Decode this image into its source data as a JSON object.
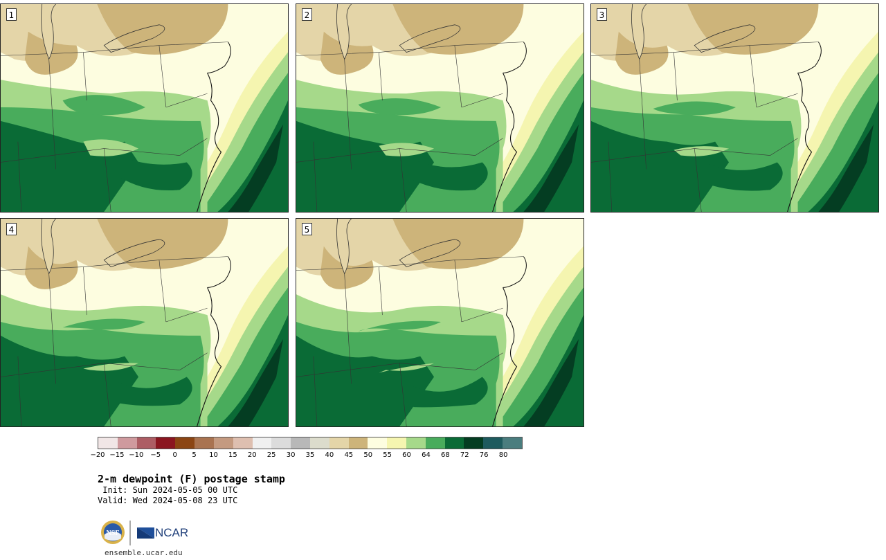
{
  "panels": [
    {
      "label": "1"
    },
    {
      "label": "2"
    },
    {
      "label": "3"
    },
    {
      "label": "4"
    },
    {
      "label": "5"
    }
  ],
  "colorbar": {
    "colors": [
      "#f1e6e6",
      "#cf9a9e",
      "#ad5d64",
      "#8b1620",
      "#8b4513",
      "#a97350",
      "#c49a80",
      "#debfb0",
      "#f0f0f0",
      "#dcdcdc",
      "#b8b8b8",
      "#dcdccc",
      "#e4d5a8",
      "#cdb47a",
      "#fdfde0",
      "#f5f5b0",
      "#a6d98a",
      "#49ac5c",
      "#0a6b36",
      "#043d22",
      "#1e5b5e",
      "#4a7d7e"
    ],
    "ticks": [
      "−20",
      "−15",
      "−10",
      "−5",
      "0",
      "5",
      "10",
      "15",
      "20",
      "25",
      "30",
      "35",
      "40",
      "45",
      "50",
      "55",
      "60",
      "64",
      "68",
      "72",
      "76",
      "80"
    ]
  },
  "title": "2-m dewpoint (F) postage stamp",
  "init": " Init: Sun 2024-05-05 00 UTC",
  "valid": "Valid: Wed 2024-05-08 23 UTC",
  "logos": {
    "nsf": "NSF",
    "ncar": "NCAR",
    "url": "ensemble.ucar.edu"
  }
}
